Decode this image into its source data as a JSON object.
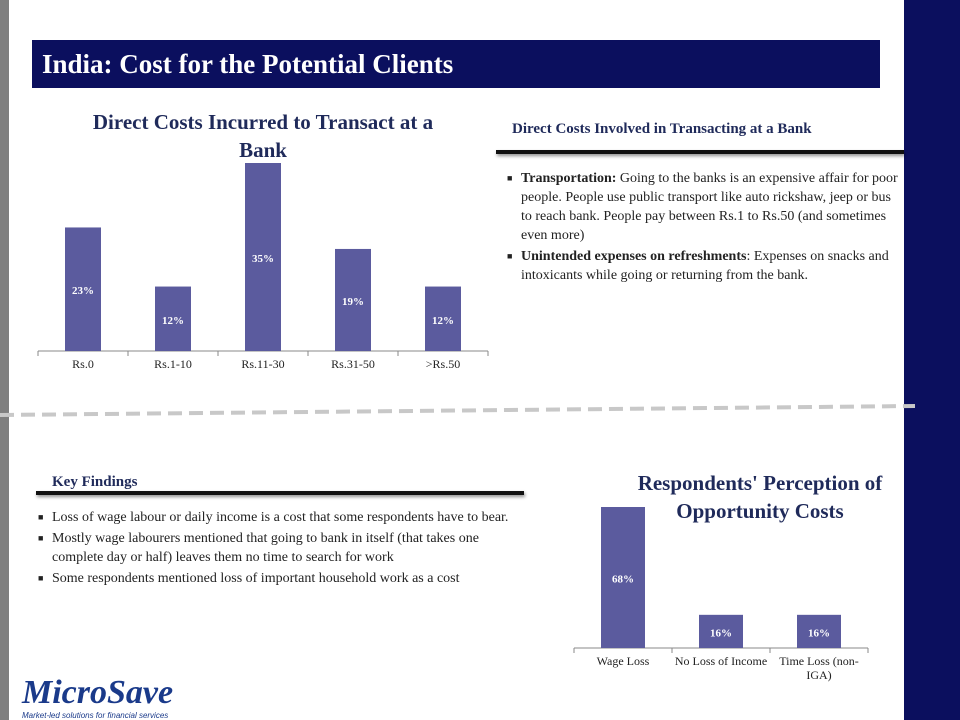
{
  "header": {
    "title": "India: Cost for the Potential Clients"
  },
  "chart_data": [
    {
      "type": "bar",
      "title": "Direct Costs Incurred to Transact at a Bank",
      "categories": [
        "Rs.0",
        "Rs.1-10",
        "Rs.11-30",
        "Rs.31-50",
        ">Rs.50"
      ],
      "values": [
        23,
        12,
        35,
        19,
        12
      ],
      "data_labels": [
        "23%",
        "12%",
        "35%",
        "19%",
        "12%"
      ],
      "ylim": [
        0,
        35
      ],
      "grid": false,
      "legend": "none",
      "bar_color": "#5b5b9e"
    },
    {
      "type": "bar",
      "title": "Respondents' Perception of Opportunity Costs",
      "categories": [
        "Wage Loss",
        "No Loss of Income",
        "Time Loss (non-IGA)"
      ],
      "values": [
        68,
        16,
        16
      ],
      "data_labels": [
        "68%",
        "16%",
        "16%"
      ],
      "ylim": [
        0,
        68
      ],
      "grid": false,
      "legend": "none",
      "bar_color": "#5b5b9e"
    }
  ],
  "direct_costs": {
    "heading": "Direct Costs Involved in Transacting at a Bank",
    "items": [
      {
        "lead": "Transportation:",
        "text": " Going to the banks is an expensive affair for poor people. People use public transport like auto rickshaw, jeep or bus to reach bank.  People pay between Rs.1 to Rs.50 (and sometimes even more)"
      },
      {
        "lead": "Unintended expenses on refreshments",
        "text": ": Expenses on snacks and intoxicants while going or returning from the bank."
      }
    ]
  },
  "key_findings": {
    "heading": "Key Findings",
    "items": [
      "Loss of wage labour or daily income is a cost that some respondents have to bear.",
      "Mostly wage labourers mentioned that going to bank in itself (that takes one complete day or half) leaves them no time to search for work",
      "Some respondents mentioned loss of important household work as a cost"
    ]
  },
  "logo": {
    "name": "MicroSave",
    "tagline": "Market-led solutions for financial services"
  },
  "colors": {
    "navy": "#0b0f5e",
    "bar": "#5b5b9e",
    "gray": "#7f7f7f"
  }
}
